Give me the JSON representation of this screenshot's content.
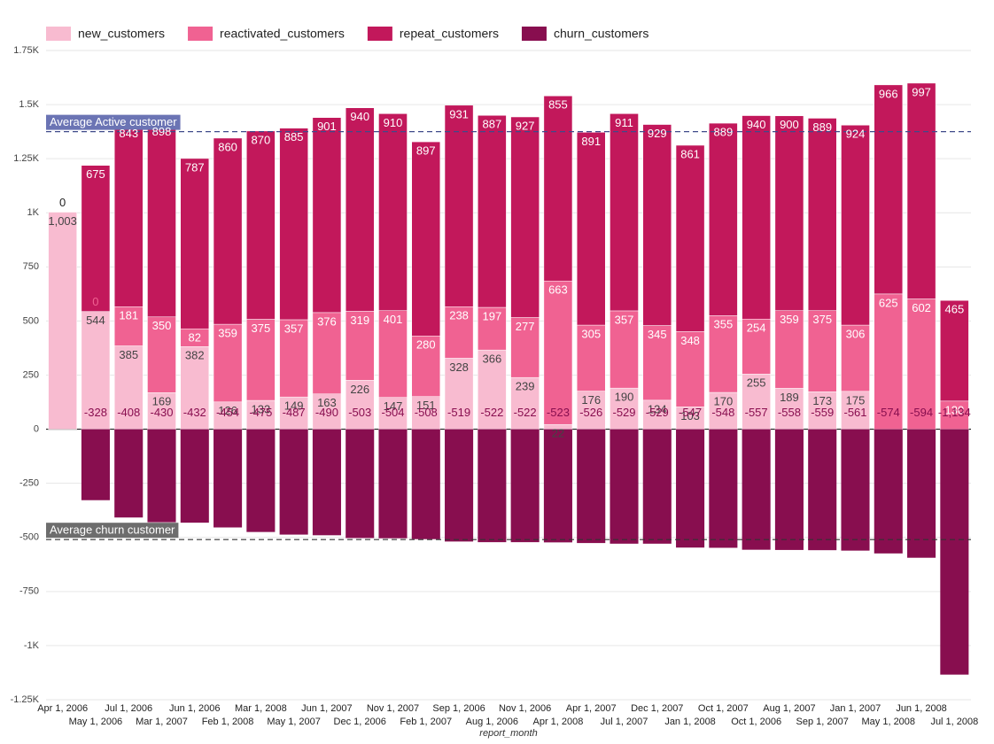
{
  "chart_data": {
    "type": "stacked_bar",
    "x_label": "report_month",
    "categories": [
      "Apr 1, 2006",
      "May 1, 2006",
      "Jul 1, 2006",
      "Mar 1, 2007",
      "Jun 1, 2006",
      "Feb 1, 2008",
      "Mar 1, 2008",
      "May 1, 2007",
      "Jun 1, 2007",
      "Dec 1, 2006",
      "Nov 1, 2007",
      "Feb 1, 2007",
      "Sep 1, 2006",
      "Aug 1, 2006",
      "Nov 1, 2006",
      "Apr 1, 2008",
      "Apr 1, 2007",
      "Jul 1, 2007",
      "Dec 1, 2007",
      "Jan 1, 2008",
      "Oct 1, 2007",
      "Oct 1, 2006",
      "Aug 1, 2007",
      "Sep 1, 2007",
      "Jan 1, 2007",
      "May 1, 2008",
      "Jun 1, 2008",
      "Jul 1, 2008"
    ],
    "series": [
      {
        "name": "new_customers",
        "color": "#f8bbd0",
        "label_color": "#444444",
        "values": [
          1003,
          544,
          385,
          169,
          382,
          126,
          133,
          149,
          163,
          226,
          147,
          151,
          328,
          366,
          239,
          22,
          176,
          190,
          134,
          103,
          170,
          255,
          189,
          173,
          175,
          null,
          null,
          null
        ],
        "value_labels": [
          "1,003",
          null,
          null,
          null,
          null,
          null,
          null,
          null,
          null,
          null,
          null,
          null,
          null,
          null,
          null,
          null,
          null,
          null,
          null,
          null,
          null,
          null,
          null,
          null,
          null,
          null,
          null,
          null
        ]
      },
      {
        "name": "reactivated_customers",
        "color": "#f06292",
        "label_color": "#ffffff",
        "values": [
          null,
          0,
          181,
          350,
          82,
          359,
          375,
          357,
          376,
          319,
          401,
          280,
          238,
          197,
          277,
          663,
          305,
          357,
          345,
          348,
          355,
          254,
          359,
          375,
          306,
          625,
          602,
          130
        ]
      },
      {
        "name": "repeat_customers",
        "color": "#c2185b",
        "label_color": "#ffffff",
        "values": [
          0,
          675,
          843,
          898,
          787,
          860,
          870,
          885,
          901,
          940,
          910,
          897,
          931,
          887,
          927,
          855,
          891,
          911,
          929,
          861,
          889,
          940,
          900,
          889,
          924,
          966,
          997,
          465
        ]
      },
      {
        "name": "churn_customers",
        "color": "#880e4f",
        "label_color": "#880e4f",
        "values": [
          null,
          -328,
          -408,
          -430,
          -432,
          -454,
          -475,
          -487,
          -490,
          -503,
          -504,
          -508,
          -519,
          -522,
          -522,
          -523,
          -526,
          -529,
          -529,
          -547,
          -548,
          -557,
          -558,
          -559,
          -561,
          -574,
          -594,
          -1134
        ],
        "value_labels": [
          null,
          null,
          null,
          null,
          null,
          null,
          null,
          null,
          null,
          null,
          null,
          null,
          null,
          null,
          null,
          null,
          null,
          null,
          null,
          null,
          null,
          null,
          null,
          null,
          null,
          null,
          null,
          "-1,134"
        ]
      }
    ],
    "reference_lines": [
      {
        "label": "Average Active customer",
        "value": 1375,
        "color": "#3f4a8a",
        "box": "#6b74b4"
      },
      {
        "label": "Average churn customer",
        "value": -510,
        "color": "#333333",
        "box": "#6d6d6d"
      }
    ],
    "ylim": [
      -1250,
      1750
    ],
    "yticks": [
      {
        "value": -1250,
        "label": "-1.25K"
      },
      {
        "value": -1000,
        "label": "-1K"
      },
      -750,
      -500,
      -250,
      0,
      250,
      500,
      750,
      {
        "value": 1000,
        "label": "1K"
      },
      {
        "value": 1250,
        "label": "1.25K"
      },
      {
        "value": 1500,
        "label": "1.5K"
      },
      {
        "value": 1750,
        "label": "1.75K"
      }
    ],
    "grid": true,
    "legend": "top"
  }
}
